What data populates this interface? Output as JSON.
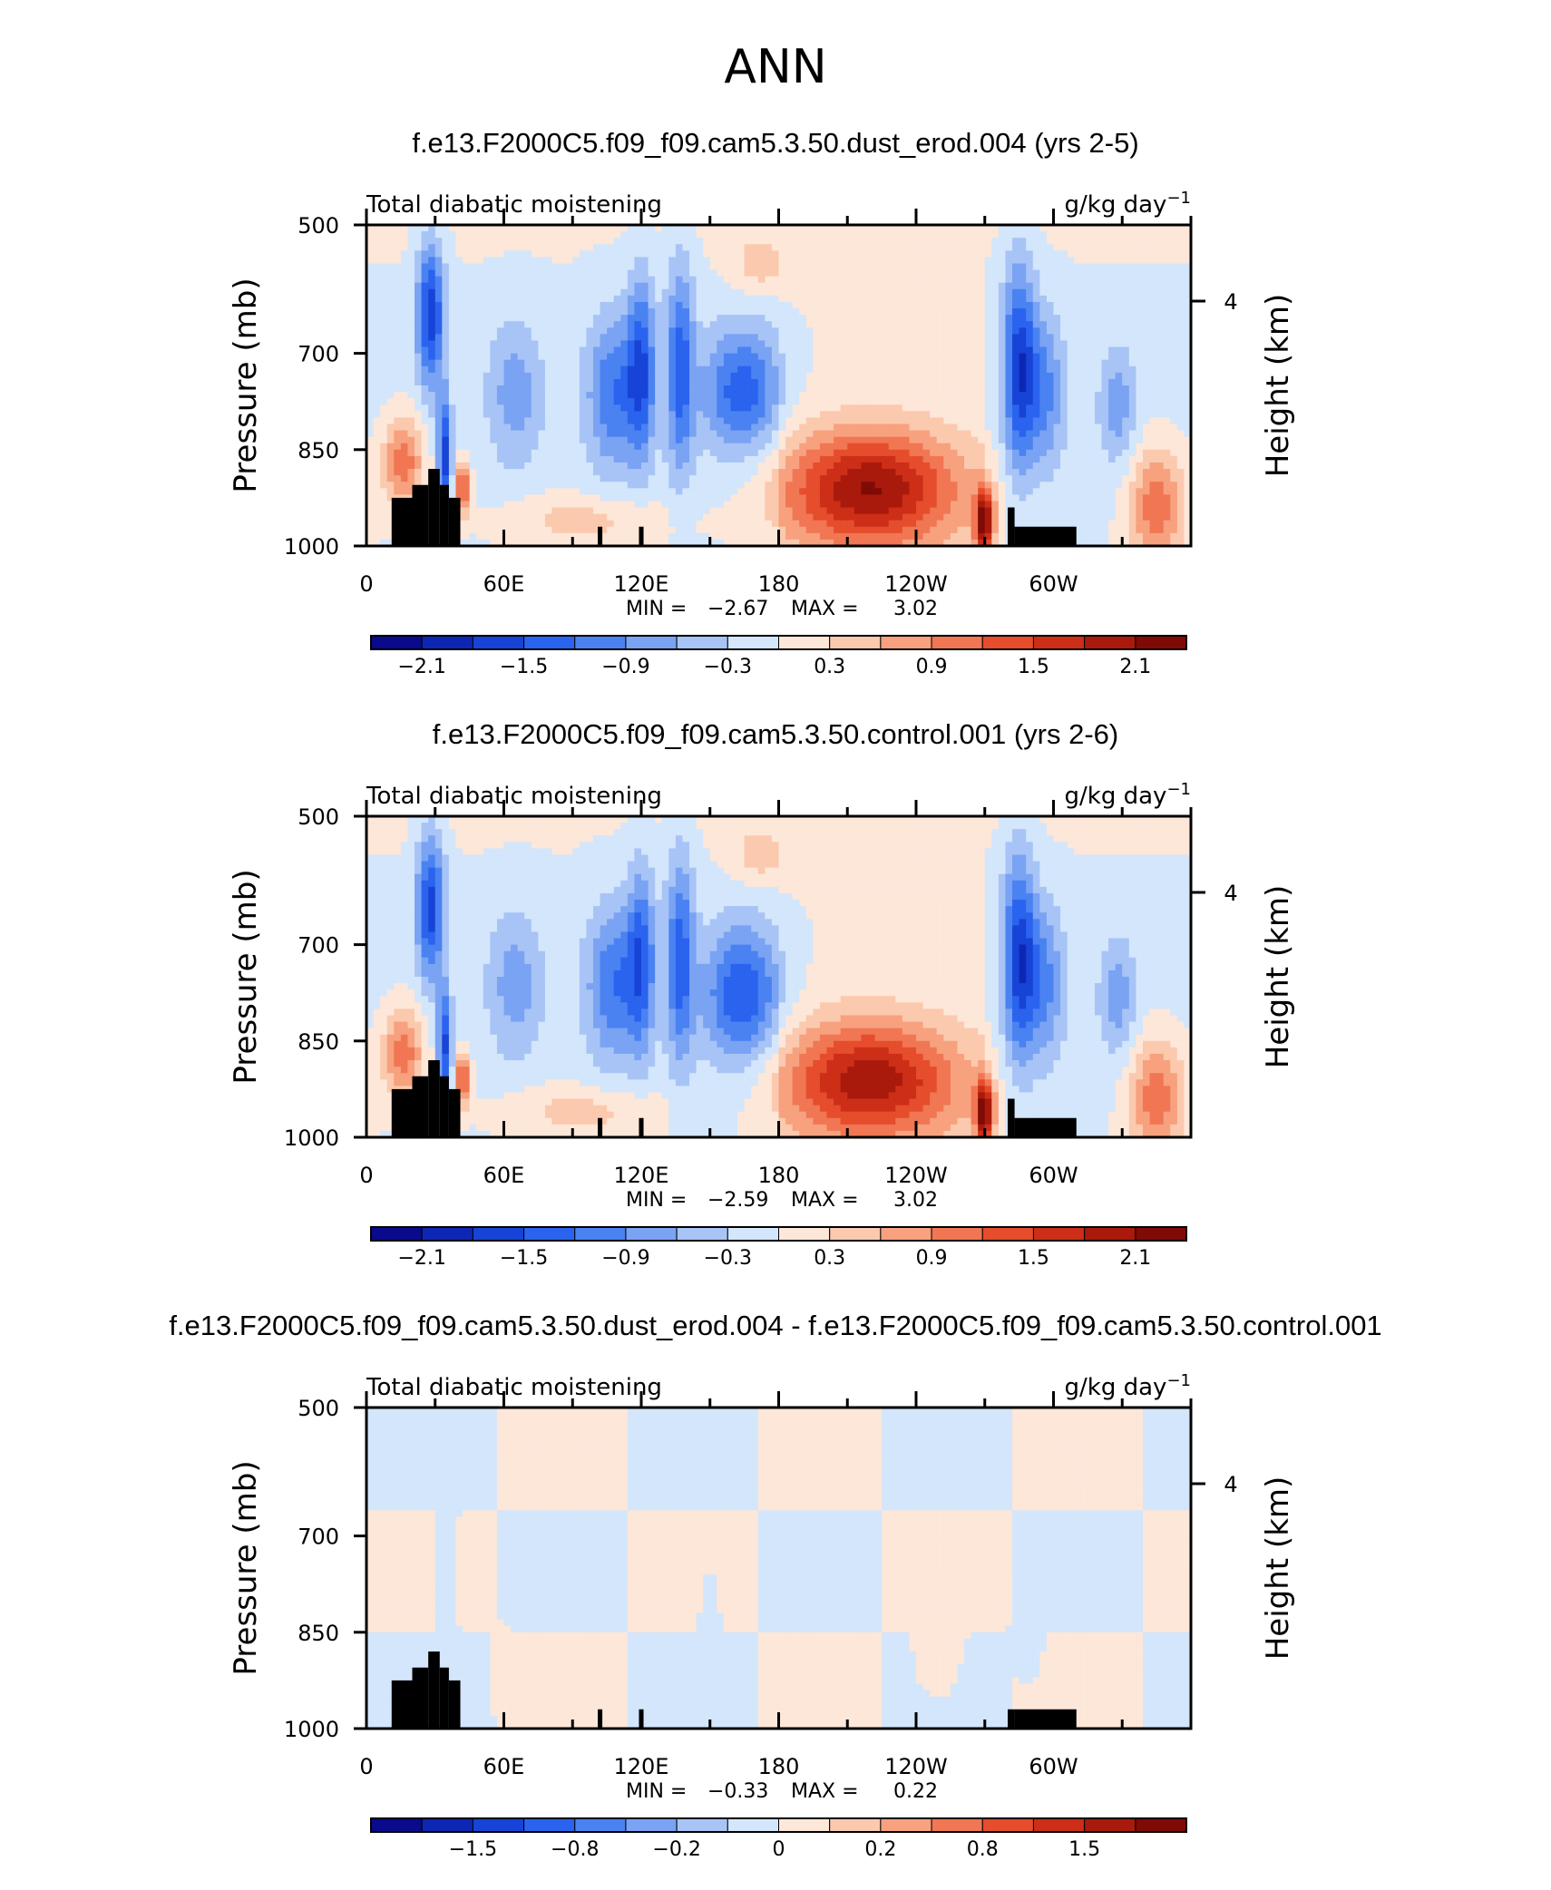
{
  "figure": {
    "title": "ANN"
  },
  "colors": {
    "blue_to_red_scale": [
      "#0a0a8c",
      "#0d26b4",
      "#1743d6",
      "#2a63ee",
      "#4a82f2",
      "#7aa3f3",
      "#a8c4f6",
      "#d3e6fb",
      "#fde7d9",
      "#fbc9ae",
      "#f7a17f",
      "#f17653",
      "#e54d2c",
      "#cc2e17",
      "#a91a0c",
      "#7f0a06"
    ],
    "topography": "#000000"
  },
  "chart_data": [
    {
      "type": "heatmap",
      "run_title": "f.e13.F2000C5.f09_f09.cam5.3.50.dust_erod.004 (yrs 2-5)",
      "variable_label": "Total diabatic moistening",
      "units_label": "g/kg day",
      "units_exponent": "−1",
      "ylabel": "Pressure (mb)",
      "right_ylabel": "Height (km)",
      "x_ticks": [
        "0",
        "60E",
        "120E",
        "180",
        "120W",
        "60W"
      ],
      "y_ticks": [
        "500",
        "700",
        "850",
        "1000"
      ],
      "right_y_ticks": [
        "4"
      ],
      "xlim": [
        0,
        360
      ],
      "ylim": [
        1000,
        500
      ],
      "stats": {
        "min_label": "MIN =",
        "min": "−2.67",
        "max_label": "MAX =",
        "max": "3.02"
      },
      "colorbar_labels": [
        "−2.1",
        "−1.5",
        "−0.9",
        "−0.3",
        "0.3",
        "0.9",
        "1.5",
        "2.1"
      ],
      "colorbar_label_slots": [
        1,
        3,
        5,
        7,
        9,
        11,
        13,
        15
      ],
      "data_range": [
        -2.67,
        3.02
      ],
      "blobs": [
        {
          "lon": 28,
          "p": 640,
          "rlon": 6,
          "rp": 110,
          "v": -1.7
        },
        {
          "lon": 34,
          "p": 860,
          "rlon": 3,
          "rp": 90,
          "v": -1.6
        },
        {
          "lon": 16,
          "p": 870,
          "rlon": 9,
          "rp": 70,
          "v": 1.2
        },
        {
          "lon": 42,
          "p": 910,
          "rlon": 3,
          "rp": 40,
          "v": 1.6
        },
        {
          "lon": 65,
          "p": 760,
          "rlon": 12,
          "rp": 110,
          "v": -0.7
        },
        {
          "lon": 108,
          "p": 760,
          "rlon": 12,
          "rp": 120,
          "v": -1.1
        },
        {
          "lon": 120,
          "p": 720,
          "rlon": 6,
          "rp": 140,
          "v": -1.3
        },
        {
          "lon": 137,
          "p": 720,
          "rlon": 6,
          "rp": 160,
          "v": -1.3
        },
        {
          "lon": 164,
          "p": 760,
          "rlon": 17,
          "rp": 100,
          "v": -1.3
        },
        {
          "lon": 172,
          "p": 560,
          "rlon": 12,
          "rp": 45,
          "v": 0.5
        },
        {
          "lon": 220,
          "p": 910,
          "rlon": 38,
          "rp": 90,
          "v": 2.0
        },
        {
          "lon": 270,
          "p": 960,
          "rlon": 4,
          "rp": 50,
          "v": 2.2
        },
        {
          "lon": 285,
          "p": 720,
          "rlon": 7,
          "rp": 160,
          "v": -1.6
        },
        {
          "lon": 296,
          "p": 760,
          "rlon": 9,
          "rp": 120,
          "v": -0.9
        },
        {
          "lon": 328,
          "p": 780,
          "rlon": 8,
          "rp": 90,
          "v": -0.7
        },
        {
          "lon": 345,
          "p": 940,
          "rlon": 12,
          "rp": 90,
          "v": 1.2
        },
        {
          "lon": 95,
          "p": 960,
          "rlon": 35,
          "rp": 40,
          "v": 0.5
        }
      ],
      "topography": [
        {
          "lon0": 11,
          "lon1": 20,
          "p": 925
        },
        {
          "lon0": 20,
          "lon1": 27,
          "p": 905
        },
        {
          "lon0": 27,
          "lon1": 32,
          "p": 880
        },
        {
          "lon0": 32,
          "lon1": 36,
          "p": 905
        },
        {
          "lon0": 36,
          "lon1": 41,
          "p": 925
        },
        {
          "lon0": 101,
          "lon1": 103,
          "p": 970
        },
        {
          "lon0": 119,
          "lon1": 121,
          "p": 970
        },
        {
          "lon0": 280,
          "lon1": 283,
          "p": 940
        },
        {
          "lon0": 283,
          "lon1": 310,
          "p": 970
        }
      ]
    },
    {
      "type": "heatmap",
      "run_title": "f.e13.F2000C5.f09_f09.cam5.3.50.control.001 (yrs 2-6)",
      "variable_label": "Total diabatic moistening",
      "units_label": "g/kg day",
      "units_exponent": "−1",
      "ylabel": "Pressure (mb)",
      "right_ylabel": "Height (km)",
      "x_ticks": [
        "0",
        "60E",
        "120E",
        "180",
        "120W",
        "60W"
      ],
      "y_ticks": [
        "500",
        "700",
        "850",
        "1000"
      ],
      "right_y_ticks": [
        "4"
      ],
      "xlim": [
        0,
        360
      ],
      "ylim": [
        1000,
        500
      ],
      "stats": {
        "min_label": "MIN =",
        "min": "−2.59",
        "max_label": "MAX =",
        "max": "3.02"
      },
      "colorbar_labels": [
        "−2.1",
        "−1.5",
        "−0.9",
        "−0.3",
        "0.3",
        "0.9",
        "1.5",
        "2.1"
      ],
      "colorbar_label_slots": [
        1,
        3,
        5,
        7,
        9,
        11,
        13,
        15
      ],
      "data_range": [
        -2.59,
        3.02
      ],
      "blobs": [
        {
          "lon": 28,
          "p": 640,
          "rlon": 6,
          "rp": 110,
          "v": -1.6
        },
        {
          "lon": 34,
          "p": 860,
          "rlon": 3,
          "rp": 90,
          "v": -1.5
        },
        {
          "lon": 16,
          "p": 870,
          "rlon": 9,
          "rp": 70,
          "v": 1.2
        },
        {
          "lon": 42,
          "p": 910,
          "rlon": 3,
          "rp": 40,
          "v": 1.6
        },
        {
          "lon": 65,
          "p": 760,
          "rlon": 12,
          "rp": 110,
          "v": -0.7
        },
        {
          "lon": 108,
          "p": 760,
          "rlon": 12,
          "rp": 120,
          "v": -1.1
        },
        {
          "lon": 120,
          "p": 720,
          "rlon": 6,
          "rp": 140,
          "v": -1.2
        },
        {
          "lon": 137,
          "p": 720,
          "rlon": 6,
          "rp": 160,
          "v": -1.3
        },
        {
          "lon": 164,
          "p": 780,
          "rlon": 17,
          "rp": 110,
          "v": -1.4
        },
        {
          "lon": 172,
          "p": 560,
          "rlon": 12,
          "rp": 45,
          "v": 0.5
        },
        {
          "lon": 220,
          "p": 910,
          "rlon": 38,
          "rp": 90,
          "v": 1.9
        },
        {
          "lon": 270,
          "p": 960,
          "rlon": 4,
          "rp": 50,
          "v": 2.2
        },
        {
          "lon": 285,
          "p": 720,
          "rlon": 7,
          "rp": 160,
          "v": -1.6
        },
        {
          "lon": 296,
          "p": 760,
          "rlon": 9,
          "rp": 120,
          "v": -0.9
        },
        {
          "lon": 328,
          "p": 780,
          "rlon": 8,
          "rp": 90,
          "v": -0.7
        },
        {
          "lon": 345,
          "p": 940,
          "rlon": 12,
          "rp": 90,
          "v": 1.2
        },
        {
          "lon": 95,
          "p": 960,
          "rlon": 35,
          "rp": 40,
          "v": 0.5
        }
      ],
      "topography": [
        {
          "lon0": 11,
          "lon1": 20,
          "p": 925
        },
        {
          "lon0": 20,
          "lon1": 27,
          "p": 905
        },
        {
          "lon0": 27,
          "lon1": 32,
          "p": 880
        },
        {
          "lon0": 32,
          "lon1": 36,
          "p": 905
        },
        {
          "lon0": 36,
          "lon1": 41,
          "p": 925
        },
        {
          "lon0": 101,
          "lon1": 103,
          "p": 970
        },
        {
          "lon0": 119,
          "lon1": 121,
          "p": 970
        },
        {
          "lon0": 280,
          "lon1": 283,
          "p": 940
        },
        {
          "lon0": 283,
          "lon1": 310,
          "p": 970
        }
      ]
    },
    {
      "type": "heatmap",
      "run_title": "f.e13.F2000C5.f09_f09.cam5.3.50.dust_erod.004 - f.e13.F2000C5.f09_f09.cam5.3.50.control.001",
      "variable_label": "Total diabatic moistening",
      "units_label": "g/kg day",
      "units_exponent": "−1",
      "ylabel": "Pressure (mb)",
      "right_ylabel": "Height (km)",
      "x_ticks": [
        "0",
        "60E",
        "120E",
        "180",
        "120W",
        "60W"
      ],
      "y_ticks": [
        "500",
        "700",
        "850",
        "1000"
      ],
      "right_y_ticks": [
        "4"
      ],
      "xlim": [
        0,
        360
      ],
      "ylim": [
        1000,
        500
      ],
      "stats": {
        "min_label": "MIN =",
        "min": "−0.33",
        "max_label": "MAX =",
        "max": "0.22"
      },
      "colorbar_labels": [
        "−1.5",
        "−0.8",
        "−0.2",
        "0",
        "0.2",
        "0.8",
        "1.5"
      ],
      "colorbar_label_slots": [
        2,
        4,
        6,
        8,
        10,
        12,
        14
      ],
      "data_range": [
        -0.33,
        0.22
      ],
      "blobs": [
        {
          "lon": 35,
          "p": 760,
          "rlon": 3,
          "rp": 120,
          "v": -0.2
        },
        {
          "lon": 60,
          "p": 920,
          "rlon": 3,
          "rp": 40,
          "v": 0.15
        },
        {
          "lon": 150,
          "p": 870,
          "rlon": 3,
          "rp": 90,
          "v": -0.2
        },
        {
          "lon": 250,
          "p": 900,
          "rlon": 8,
          "rp": 50,
          "v": 0.12
        },
        {
          "lon": 290,
          "p": 840,
          "rlon": 4,
          "rp": 60,
          "v": -0.15
        }
      ],
      "topography": [
        {
          "lon0": 11,
          "lon1": 20,
          "p": 925
        },
        {
          "lon0": 20,
          "lon1": 27,
          "p": 905
        },
        {
          "lon0": 27,
          "lon1": 32,
          "p": 880
        },
        {
          "lon0": 32,
          "lon1": 36,
          "p": 905
        },
        {
          "lon0": 36,
          "lon1": 41,
          "p": 925
        },
        {
          "lon0": 101,
          "lon1": 103,
          "p": 970
        },
        {
          "lon0": 119,
          "lon1": 121,
          "p": 970
        },
        {
          "lon0": 280,
          "lon1": 283,
          "p": 970
        },
        {
          "lon0": 283,
          "lon1": 310,
          "p": 970
        }
      ]
    }
  ]
}
